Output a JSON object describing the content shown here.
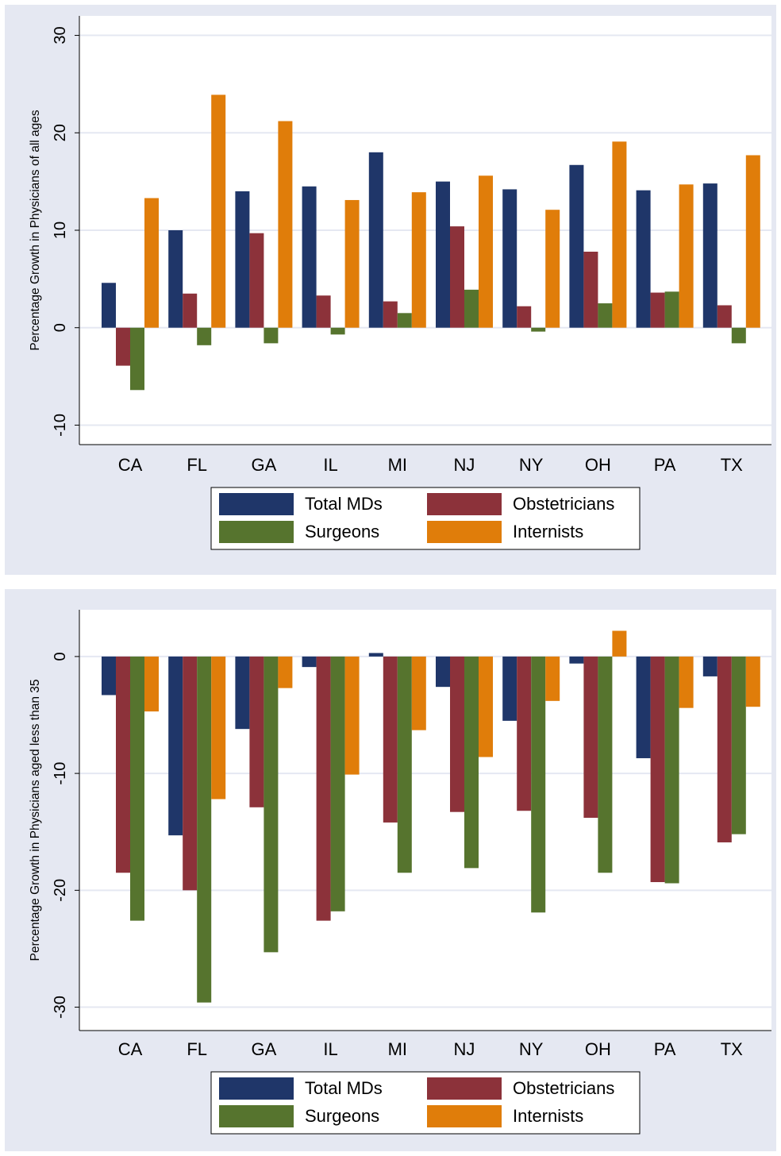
{
  "colors": {
    "panel_bg": "#e5e8f2",
    "plot_bg": "#ffffff",
    "grid": "#e5e8f2",
    "series": [
      "#1f3669",
      "#8c323a",
      "#56742e",
      "#e07d0a"
    ]
  },
  "chart_data": [
    {
      "type": "bar",
      "ylabel": "Percentage Growth in Physicians of all ages",
      "ylim": [
        -12,
        32
      ],
      "yticks": [
        -10,
        0,
        10,
        20,
        30
      ],
      "grid": true,
      "legend_position": "bottom",
      "categories": [
        "CA",
        "FL",
        "GA",
        "IL",
        "MI",
        "NJ",
        "NY",
        "OH",
        "PA",
        "TX"
      ],
      "series": [
        {
          "name": "Total MDs",
          "values": [
            4.6,
            10.0,
            14.0,
            14.5,
            18.0,
            15.0,
            14.2,
            16.7,
            14.1,
            14.8
          ]
        },
        {
          "name": "Obstetricians",
          "values": [
            -3.9,
            3.5,
            9.7,
            3.3,
            2.7,
            10.4,
            2.2,
            7.8,
            3.6,
            2.3
          ]
        },
        {
          "name": "Surgeons",
          "values": [
            -6.4,
            -1.8,
            -1.6,
            -0.7,
            1.5,
            3.9,
            -0.4,
            2.5,
            3.7,
            -1.6
          ]
        },
        {
          "name": "Internists",
          "values": [
            13.3,
            23.9,
            21.2,
            13.1,
            13.9,
            15.6,
            12.1,
            19.1,
            14.7,
            17.7
          ]
        }
      ]
    },
    {
      "type": "bar",
      "ylabel": "Percentage Growth in Physicians aged less than 35",
      "ylim": [
        -32,
        4
      ],
      "yticks": [
        -30,
        -20,
        -10,
        0
      ],
      "grid": true,
      "legend_position": "bottom",
      "categories": [
        "CA",
        "FL",
        "GA",
        "IL",
        "MI",
        "NJ",
        "NY",
        "OH",
        "PA",
        "TX"
      ],
      "series": [
        {
          "name": "Total MDs",
          "values": [
            -3.3,
            -15.3,
            -6.2,
            -0.9,
            0.3,
            -2.6,
            -5.5,
            -0.6,
            -8.7,
            -1.7
          ]
        },
        {
          "name": "Obstetricians",
          "values": [
            -18.5,
            -20.0,
            -12.9,
            -22.6,
            -14.2,
            -13.3,
            -13.2,
            -13.8,
            -19.3,
            -15.9
          ]
        },
        {
          "name": "Surgeons",
          "values": [
            -22.6,
            -29.6,
            -25.3,
            -21.8,
            -18.5,
            -18.1,
            -21.9,
            -18.5,
            -19.4,
            -15.2
          ]
        },
        {
          "name": "Internists",
          "values": [
            -4.7,
            -12.2,
            -2.7,
            -10.1,
            -6.3,
            -8.6,
            -3.8,
            2.2,
            -4.4,
            -4.3
          ]
        }
      ]
    }
  ]
}
